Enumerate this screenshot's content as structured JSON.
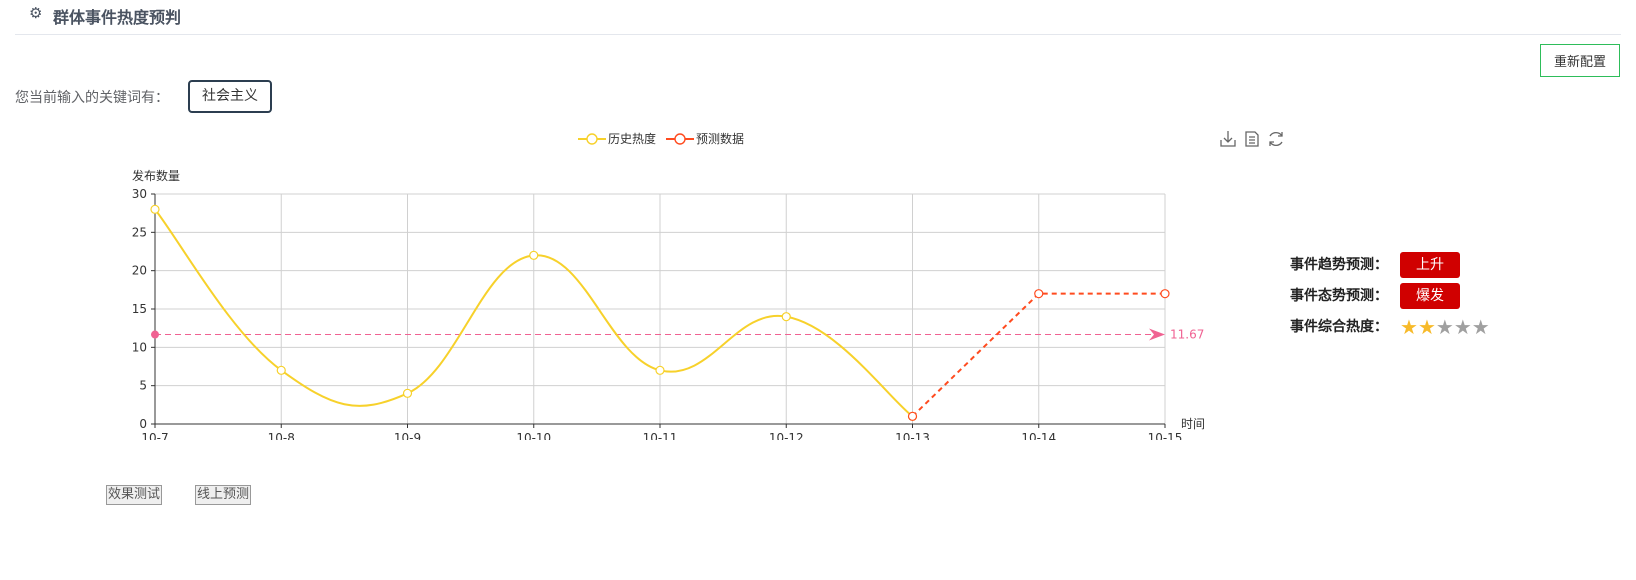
{
  "header": {
    "title": "群体事件热度预判",
    "icon": "gear-icon"
  },
  "reconfig_label": "重新配置",
  "keyword": {
    "label": "您当前输入的关键词有：",
    "value": "社会主义"
  },
  "toolbox": {
    "icons": [
      "download-icon",
      "data-view-icon",
      "refresh-icon"
    ]
  },
  "chart_data": {
    "type": "line",
    "x": [
      "10-7",
      "10-8",
      "10-9",
      "10-10",
      "10-11",
      "10-12",
      "10-13",
      "10-14",
      "10-15"
    ],
    "xlabel": "时间",
    "ylabel": "发布数量",
    "ylim": [
      0,
      30
    ],
    "yticks": [
      0,
      5,
      10,
      15,
      20,
      25,
      30
    ],
    "grid": true,
    "legend": "top-center",
    "series": [
      {
        "name": "历史热度",
        "color": "#f7d12b",
        "smooth": true,
        "x": [
          "10-7",
          "10-8",
          "10-9",
          "10-10",
          "10-11",
          "10-12",
          "10-13"
        ],
        "values": [
          28,
          7,
          4,
          22,
          7,
          14,
          1
        ]
      },
      {
        "name": "预测数据",
        "color": "#ff4b1f",
        "dashed": true,
        "x": [
          "10-13",
          "10-14",
          "10-15"
        ],
        "values": [
          1,
          17,
          17
        ]
      }
    ],
    "markline": {
      "value": 11.67,
      "label": "11.67",
      "color": "#f06292"
    }
  },
  "predictions": {
    "trend_label": "事件趋势预测：",
    "trend_value": "上升",
    "trend_color": "#d00000",
    "state_label": "事件态势预测：",
    "state_value": "爆发",
    "state_color": "#d00000",
    "heat_label": "事件综合热度：",
    "heat_stars": 2,
    "heat_max": 5
  },
  "buttons": {
    "test": "效果测试",
    "online": "线上预测"
  }
}
